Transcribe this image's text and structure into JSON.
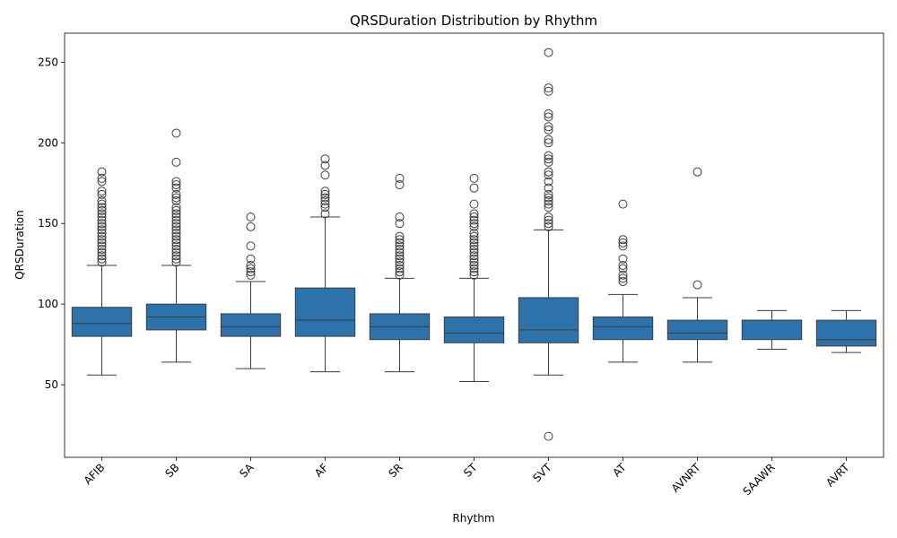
{
  "chart_data": {
    "type": "boxplot",
    "title": "QRSDuration Distribution by Rhythm",
    "xlabel": "Rhythm",
    "ylabel": "QRSDuration",
    "ylim": [
      5,
      268
    ],
    "yticks": [
      50,
      100,
      150,
      200,
      250
    ],
    "box_color": "#2d72ab",
    "line_color": "#3d3d3d",
    "grid": false,
    "categories": [
      "AFIB",
      "SB",
      "SA",
      "AF",
      "SR",
      "ST",
      "SVT",
      "AT",
      "AVNRT",
      "SAAWR",
      "AVRT"
    ],
    "boxes": [
      {
        "whisker_low": 56,
        "q1": 80,
        "median": 88,
        "q3": 98,
        "whisker_high": 124,
        "fliers": [
          126,
          128,
          130,
          132,
          134,
          136,
          138,
          140,
          142,
          144,
          146,
          148,
          150,
          152,
          154,
          156,
          158,
          160,
          162,
          164,
          168,
          170,
          176,
          178,
          182
        ]
      },
      {
        "whisker_low": 64,
        "q1": 84,
        "median": 92,
        "q3": 100,
        "whisker_high": 124,
        "fliers": [
          126,
          128,
          130,
          132,
          134,
          136,
          138,
          140,
          142,
          144,
          146,
          148,
          150,
          152,
          154,
          156,
          158,
          160,
          164,
          166,
          168,
          172,
          174,
          176,
          188,
          206
        ]
      },
      {
        "whisker_low": 60,
        "q1": 80,
        "median": 86,
        "q3": 94,
        "whisker_high": 114,
        "fliers": [
          118,
          120,
          122,
          124,
          128,
          136,
          148,
          154
        ]
      },
      {
        "whisker_low": 58,
        "q1": 80,
        "median": 90,
        "q3": 110,
        "whisker_high": 154,
        "fliers": [
          156,
          160,
          162,
          164,
          166,
          168,
          170,
          180,
          186,
          190
        ]
      },
      {
        "whisker_low": 58,
        "q1": 78,
        "median": 86,
        "q3": 94,
        "whisker_high": 116,
        "fliers": [
          118,
          120,
          122,
          124,
          126,
          128,
          130,
          132,
          134,
          136,
          138,
          140,
          142,
          150,
          154,
          174,
          178
        ]
      },
      {
        "whisker_low": 52,
        "q1": 76,
        "median": 82,
        "q3": 92,
        "whisker_high": 116,
        "fliers": [
          118,
          120,
          122,
          124,
          126,
          128,
          130,
          132,
          134,
          136,
          138,
          140,
          142,
          144,
          148,
          150,
          152,
          154,
          156,
          162,
          172,
          178
        ]
      },
      {
        "whisker_low": 56,
        "q1": 76,
        "median": 84,
        "q3": 104,
        "whisker_high": 146,
        "fliers": [
          18,
          148,
          150,
          152,
          154,
          160,
          162,
          164,
          166,
          168,
          172,
          176,
          180,
          182,
          188,
          190,
          192,
          200,
          202,
          208,
          210,
          216,
          218,
          232,
          234,
          256
        ]
      },
      {
        "whisker_low": 64,
        "q1": 78,
        "median": 86,
        "q3": 92,
        "whisker_high": 106,
        "fliers": [
          114,
          116,
          118,
          122,
          124,
          128,
          136,
          138,
          140,
          162
        ]
      },
      {
        "whisker_low": 64,
        "q1": 78,
        "median": 82,
        "q3": 90,
        "whisker_high": 104,
        "fliers": [
          112,
          182
        ]
      },
      {
        "whisker_low": 72,
        "q1": 78,
        "median": 90,
        "q3": 90,
        "whisker_high": 96,
        "fliers": []
      },
      {
        "whisker_low": 70,
        "q1": 74,
        "median": 78,
        "q3": 90,
        "whisker_high": 96,
        "fliers": []
      }
    ]
  }
}
